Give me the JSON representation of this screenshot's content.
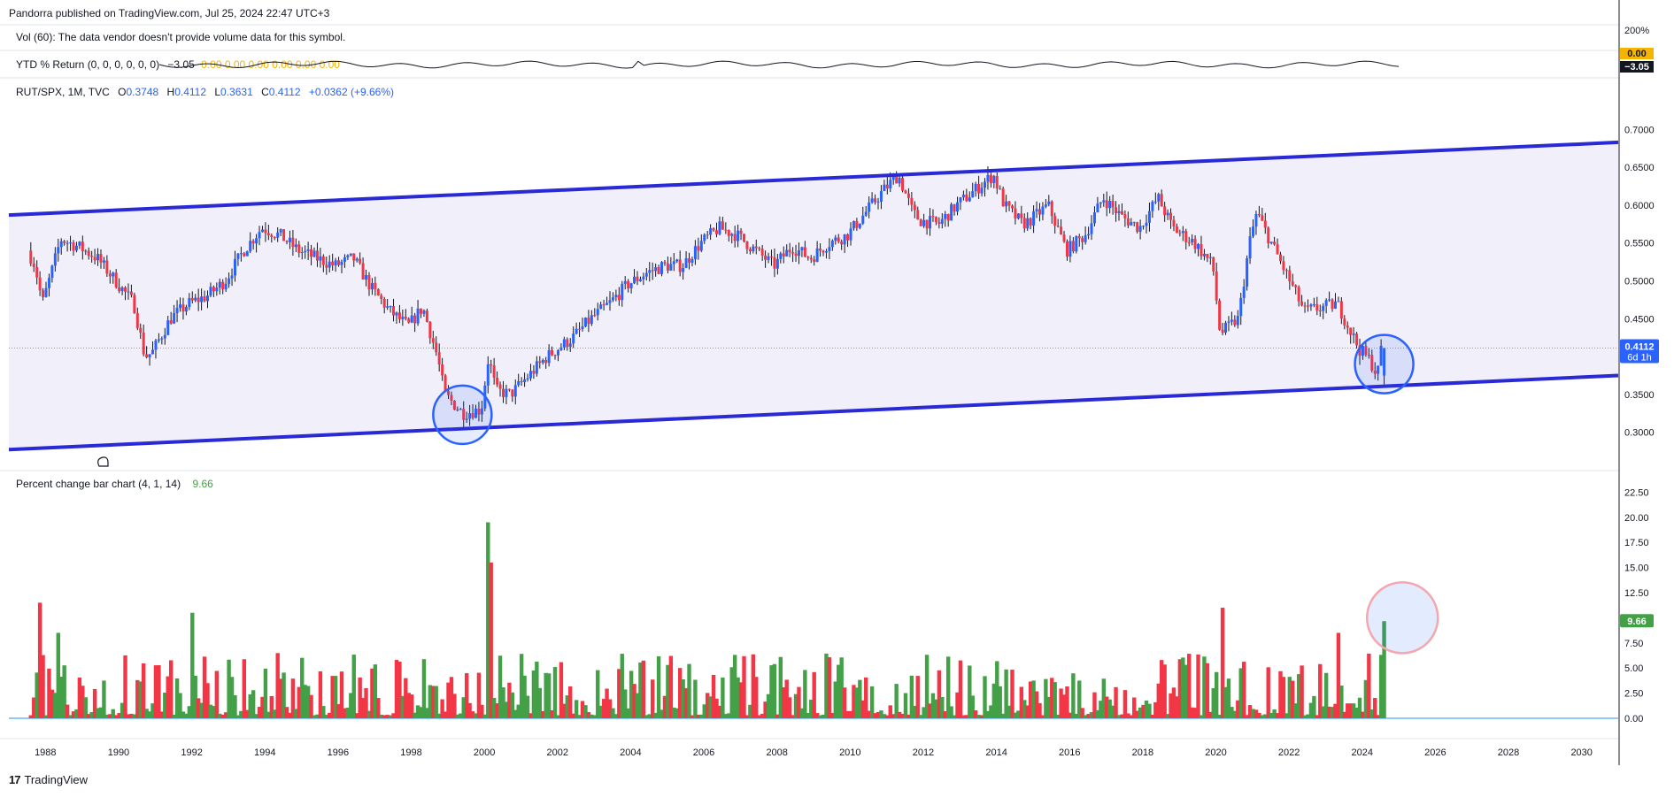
{
  "header": {
    "publisher": "Pandorra published on TradingView.com, Jul 25, 2024 22:47 UTC+3"
  },
  "volume_legend": {
    "text": "Vol (60): The data vendor doesn't provide volume data for this symbol."
  },
  "ytd_legend": {
    "label": "YTD % Return (0, 0, 0, 0, 0, 0)",
    "values": "0.00  0.00  0.00  0.00  0.00  0.00",
    "last": "−3.05",
    "axis_top": "0.00",
    "axis_value": "−3.05",
    "axis_corner": "200%"
  },
  "symbol_legend": {
    "symbol": "RUT/SPX, 1M, TVC",
    "o_label": "O",
    "o": "0.3748",
    "h_label": "H",
    "h": "0.4112",
    "l_label": "L",
    "l": "0.3631",
    "c_label": "C",
    "c": "0.4112",
    "change": "+0.0362 (+9.66%)"
  },
  "price_tag": {
    "value": "0.4112",
    "countdown": "6d 1h"
  },
  "pct_legend": {
    "label": "Percent change bar chart (4, 1, 14)",
    "value": "9.66"
  },
  "pct_tag": "9.66",
  "footer": {
    "brand": "TradingView"
  },
  "colors": {
    "up": "#2962ff",
    "down": "#f23645",
    "channel": "#2929d6",
    "channel_fill": "#ece9f8",
    "bar_up": "#43a047",
    "bar_down": "#f23645",
    "circle_blue": "#2962ff",
    "circle_red": "#f4a7ad"
  },
  "chart_data": [
    {
      "type": "candlestick",
      "title": "RUT/SPX, 1M, TVC",
      "xlim": [
        1987.0,
        2031.0
      ],
      "ylim": [
        0.275,
        0.725
      ],
      "x_ticks": [
        "1988",
        "1990",
        "1992",
        "1994",
        "1996",
        "1998",
        "2000",
        "2002",
        "2004",
        "2006",
        "2008",
        "2010",
        "2012",
        "2014",
        "2016",
        "2018",
        "2020",
        "2022",
        "2024",
        "2026",
        "2028",
        "2030"
      ],
      "y_ticks": [
        "0.7000",
        "0.6500",
        "0.6000",
        "0.5500",
        "0.5000",
        "0.4500",
        "0.4000",
        "0.3500",
        "0.3000"
      ],
      "price_path": [
        [
          1987.6,
          0.54
        ],
        [
          1987.8,
          0.52
        ],
        [
          1988.0,
          0.47
        ],
        [
          1988.3,
          0.52
        ],
        [
          1988.5,
          0.555
        ],
        [
          1989.0,
          0.545
        ],
        [
          1989.5,
          0.53
        ],
        [
          1990.0,
          0.5
        ],
        [
          1990.5,
          0.47
        ],
        [
          1990.8,
          0.4
        ],
        [
          1991.0,
          0.405
        ],
        [
          1991.5,
          0.45
        ],
        [
          1992.0,
          0.47
        ],
        [
          1992.5,
          0.48
        ],
        [
          1993.0,
          0.5
        ],
        [
          1993.5,
          0.54
        ],
        [
          1994.0,
          0.57
        ],
        [
          1994.5,
          0.56
        ],
        [
          1995.0,
          0.54
        ],
        [
          1995.5,
          0.53
        ],
        [
          1996.0,
          0.52
        ],
        [
          1996.5,
          0.53
        ],
        [
          1997.0,
          0.49
        ],
        [
          1997.5,
          0.46
        ],
        [
          1998.0,
          0.44
        ],
        [
          1998.4,
          0.465
        ],
        [
          1998.8,
          0.4
        ],
        [
          1999.0,
          0.35
        ],
        [
          1999.5,
          0.325
        ],
        [
          2000.0,
          0.33
        ],
        [
          2000.2,
          0.4
        ],
        [
          2000.4,
          0.355
        ],
        [
          2000.8,
          0.35
        ],
        [
          2001.2,
          0.37
        ],
        [
          2001.8,
          0.4
        ],
        [
          2002.5,
          0.425
        ],
        [
          2003.0,
          0.45
        ],
        [
          2003.5,
          0.47
        ],
        [
          2004.0,
          0.495
        ],
        [
          2004.5,
          0.51
        ],
        [
          2005.0,
          0.52
        ],
        [
          2005.5,
          0.52
        ],
        [
          2006.0,
          0.55
        ],
        [
          2006.5,
          0.57
        ],
        [
          2007.0,
          0.56
        ],
        [
          2007.5,
          0.54
        ],
        [
          2008.0,
          0.52
        ],
        [
          2008.5,
          0.545
        ],
        [
          2009.0,
          0.53
        ],
        [
          2009.5,
          0.55
        ],
        [
          2010.0,
          0.56
        ],
        [
          2010.5,
          0.59
        ],
        [
          2011.0,
          0.62
        ],
        [
          2011.4,
          0.64
        ],
        [
          2011.8,
          0.59
        ],
        [
          2012.0,
          0.58
        ],
        [
          2012.5,
          0.575
        ],
        [
          2013.0,
          0.6
        ],
        [
          2013.5,
          0.62
        ],
        [
          2014.0,
          0.64
        ],
        [
          2014.3,
          0.6
        ],
        [
          2014.8,
          0.575
        ],
        [
          2015.0,
          0.58
        ],
        [
          2015.5,
          0.6
        ],
        [
          2016.0,
          0.54
        ],
        [
          2016.5,
          0.56
        ],
        [
          2017.0,
          0.61
        ],
        [
          2017.5,
          0.585
        ],
        [
          2018.0,
          0.57
        ],
        [
          2018.5,
          0.61
        ],
        [
          2018.9,
          0.57
        ],
        [
          2019.5,
          0.55
        ],
        [
          2020.0,
          0.52
        ],
        [
          2020.2,
          0.43
        ],
        [
          2020.7,
          0.45
        ],
        [
          2021.0,
          0.55
        ],
        [
          2021.2,
          0.59
        ],
        [
          2021.6,
          0.55
        ],
        [
          2022.0,
          0.51
        ],
        [
          2022.5,
          0.46
        ],
        [
          2023.0,
          0.465
        ],
        [
          2023.4,
          0.47
        ],
        [
          2023.8,
          0.43
        ],
        [
          2024.0,
          0.41
        ],
        [
          2024.3,
          0.395
        ],
        [
          2024.5,
          0.3748
        ],
        [
          2024.6,
          0.4112
        ]
      ],
      "last": {
        "open": 0.3748,
        "high": 0.4112,
        "low": 0.3631,
        "close": 0.4112
      },
      "channel_upper": [
        [
          1987.0,
          0.587
        ],
        [
          2031.0,
          0.683
        ]
      ],
      "channel_lower": [
        [
          1987.0,
          0.277
        ],
        [
          2031.0,
          0.375
        ]
      ],
      "annotations": [
        {
          "type": "circle",
          "x": 1999.4,
          "y": 0.323,
          "color": "blue"
        },
        {
          "type": "circle",
          "x": 2024.6,
          "y": 0.39,
          "color": "blue"
        }
      ]
    },
    {
      "type": "bar",
      "title": "Percent change bar chart (4, 1, 14)",
      "xlim": [
        1987.0,
        2031.0
      ],
      "ylim": [
        0,
        23.5
      ],
      "y_ticks": [
        "22.50",
        "20.00",
        "17.50",
        "15.00",
        "12.50",
        "10.00",
        "7.50",
        "5.00",
        "2.50",
        "0.00"
      ],
      "highlight_bars": [
        {
          "x": 1987.8,
          "value": 11.5,
          "dir": "down"
        },
        {
          "x": 1988.3,
          "value": 8.5,
          "dir": "up"
        },
        {
          "x": 1992.0,
          "value": 10.5,
          "dir": "up"
        },
        {
          "x": 2000.1,
          "value": 19.5,
          "dir": "up"
        },
        {
          "x": 2000.2,
          "value": 15.5,
          "dir": "down"
        },
        {
          "x": 2020.2,
          "value": 11.0,
          "dir": "down"
        },
        {
          "x": 2023.3,
          "value": 8.5,
          "dir": "down"
        },
        {
          "x": 2024.6,
          "value": 9.66,
          "dir": "up"
        }
      ],
      "annotations": [
        {
          "type": "circle",
          "x": 2025.1,
          "y": 10.0,
          "color": "red"
        }
      ]
    }
  ]
}
